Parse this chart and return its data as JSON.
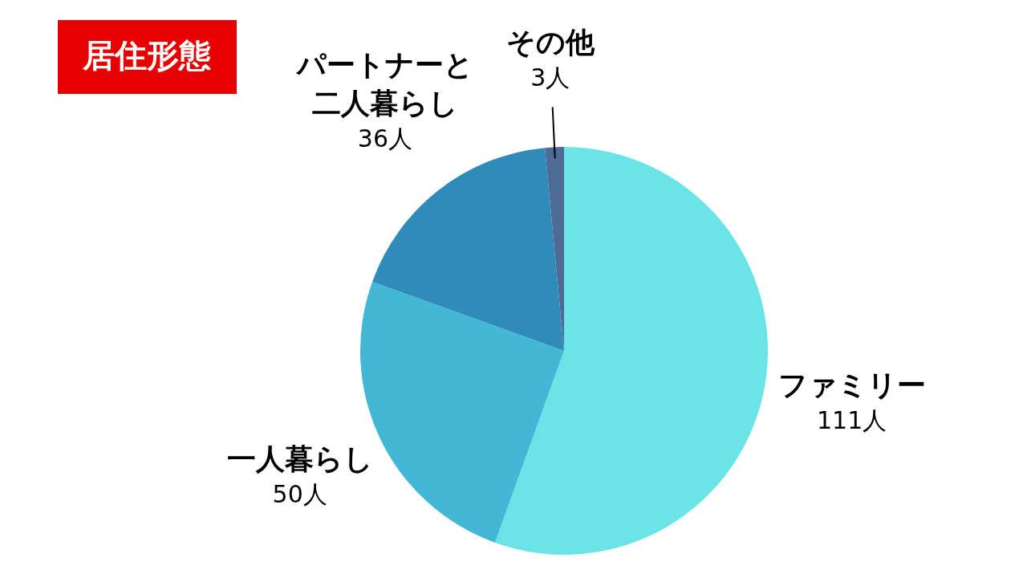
{
  "chart_data": {
    "type": "pie",
    "title": "居住形態",
    "categories": [
      "ファミリー",
      "一人暮らし",
      "パートナーと二人暮らし",
      "その他"
    ],
    "values": [
      111,
      50,
      36,
      3
    ],
    "colors": [
      "#6ae4e7",
      "#42b8d6",
      "#2e8bba",
      "#4e6b96"
    ],
    "value_labels": [
      "111人",
      "50人",
      "36人",
      "3人"
    ]
  }
}
